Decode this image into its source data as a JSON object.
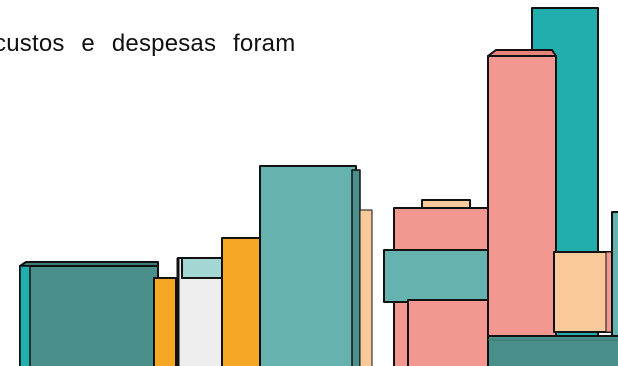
{
  "caption": "custos e despesas foram",
  "illustration": {
    "description_icon": "bar-blocks-illustration",
    "colors": {
      "teal_dark": "#4a8f8a",
      "teal": "#66b2ae",
      "teal_bright": "#22aeac",
      "orange": "#f5a623",
      "peach": "#f8c99a",
      "salmon": "#f29891",
      "light_gray": "#eeeeee",
      "mint": "#a4d6d4",
      "outline": "#111111"
    }
  }
}
